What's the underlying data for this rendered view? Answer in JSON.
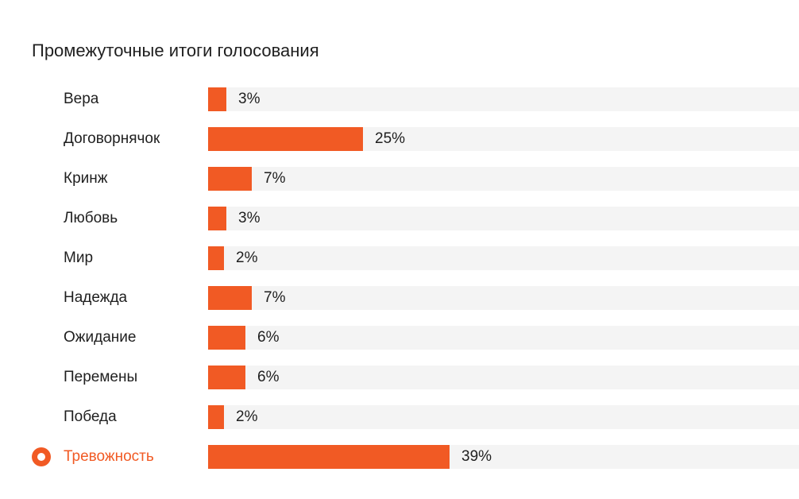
{
  "title": "Промежуточные итоги голосования",
  "colors": {
    "accent": "#f15a24",
    "track": "#f4f4f4",
    "text": "#1f1f1f"
  },
  "chart_data": {
    "type": "bar",
    "orientation": "horizontal",
    "title": "Промежуточные итоги голосования",
    "categories": [
      "Вера",
      "Договорнячок",
      "Кринж",
      "Любовь",
      "Мир",
      "Надежда",
      "Ожидание",
      "Перемены",
      "Победа",
      "Тревожность"
    ],
    "values": [
      3,
      25,
      7,
      3,
      2,
      7,
      6,
      6,
      2,
      39
    ],
    "value_labels": [
      "3%",
      "25%",
      "7%",
      "3%",
      "2%",
      "7%",
      "6%",
      "6%",
      "2%",
      "39%"
    ],
    "unit": "%",
    "xlim": [
      0,
      100
    ],
    "selected": "Тревожность",
    "grid": false,
    "legend": "none"
  }
}
